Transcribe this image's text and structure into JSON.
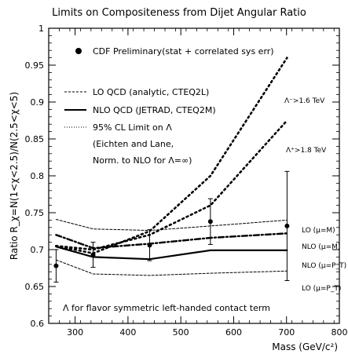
{
  "chart_data": {
    "type": "line",
    "title": "Limits on Compositeness from Dijet Angular Ratio",
    "xlabel": "Mass (GeV/c²)",
    "ylabel": "Ratio R_χ=N(1<χ<2.5)/N(2.5<χ<5)",
    "xlim": [
      250,
      800
    ],
    "ylim": [
      0.6,
      1.0
    ],
    "x_ticks": [
      "300",
      "400",
      "500",
      "600",
      "700",
      "800"
    ],
    "y_ticks": [
      "0.6",
      "0.65",
      "0.7",
      "0.75",
      "0.8",
      "0.85",
      "0.9",
      "0.95",
      "1"
    ],
    "grid": false,
    "legend": {
      "data_label": "CDF Preliminary(stat + correlated sys err)",
      "lo_qcd": "LO QCD (analytic, CTEQ2L)",
      "nlo_qcd": "NLO QCD (JETRAD, CTEQ2M)",
      "limit_line1": "95% CL Limit on Λ",
      "limit_line2": "(Eichten and Lane,",
      "limit_line3": "Norm. to NLO for Λ=∞)"
    },
    "footnote": "Λ for flavor symmetric left-handed contact term",
    "series": [
      {
        "name": "CDF Preliminary",
        "x": [
          264,
          334,
          441,
          556,
          701
        ],
        "y": [
          0.678,
          0.693,
          0.706,
          0.738,
          0.732
        ],
        "yerr": [
          0.022,
          0.017,
          0.021,
          0.031,
          0.074
        ]
      },
      {
        "name": "LO (μ=M)",
        "x": [
          264,
          334,
          441,
          556,
          701
        ],
        "y": [
          0.741,
          0.728,
          0.726,
          0.732,
          0.74
        ]
      },
      {
        "name": "NLO (μ=M)",
        "x": [
          264,
          334,
          441,
          556,
          701
        ],
        "y": [
          0.72,
          0.702,
          0.708,
          0.716,
          0.722
        ]
      },
      {
        "name": "NLO (μ=P_T)",
        "x": [
          264,
          334,
          441,
          556,
          701
        ],
        "y": [
          0.704,
          0.69,
          0.687,
          0.699,
          0.699
        ]
      },
      {
        "name": "LO (μ=P_T)",
        "x": [
          264,
          334,
          441,
          556,
          701
        ],
        "y": [
          0.686,
          0.667,
          0.665,
          0.668,
          0.671
        ]
      },
      {
        "name": "Λ⁻>1.6 TeV",
        "x": [
          264,
          334,
          441,
          556,
          701
        ],
        "y": [
          0.705,
          0.695,
          0.725,
          0.8,
          0.96
        ]
      },
      {
        "name": "Λ⁺>1.8 TeV",
        "x": [
          264,
          334,
          441,
          556,
          701
        ],
        "y": [
          0.705,
          0.7,
          0.72,
          0.76,
          0.875
        ]
      }
    ],
    "curve_labels": {
      "lam_minus": "Λ⁻>1.6 TeV",
      "lam_plus": "Λ⁺>1.8 TeV",
      "lo_m": "LO (μ=M)",
      "nlo_m": "NLO (μ=M)",
      "nlo_pt": "NLO (μ=P_T)",
      "lo_pt": "LO (μ=P_T)"
    }
  }
}
